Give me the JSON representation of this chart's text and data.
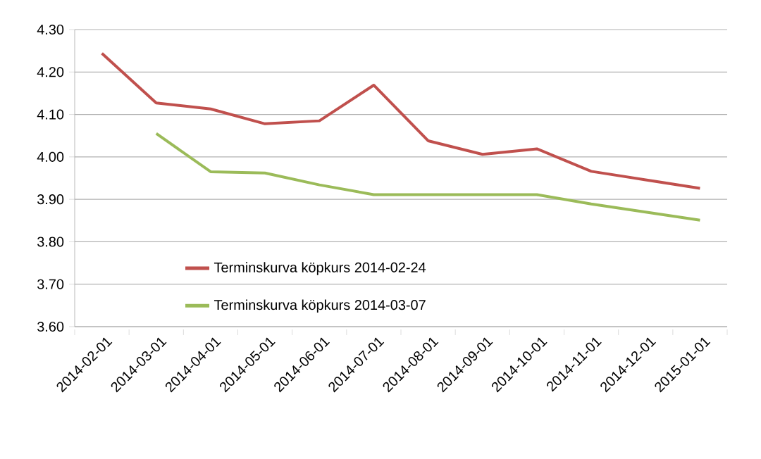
{
  "chart_data": {
    "type": "line",
    "categories": [
      "2014-02-01",
      "2014-03-01",
      "2014-04-01",
      "2014-05-01",
      "2014-06-01",
      "2014-07-01",
      "2014-08-01",
      "2014-09-01",
      "2014-10-01",
      "2014-11-01",
      "2014-12-01",
      "2015-01-01"
    ],
    "series": [
      {
        "name": "Terminskurva köpkurs 2014-02-24",
        "color": "#c0504d",
        "values": [
          4.244,
          4.127,
          4.113,
          4.078,
          4.085,
          4.169,
          4.038,
          4.006,
          4.019,
          3.966,
          3.946,
          3.926
        ]
      },
      {
        "name": "Terminskurva köpkurs 2014-03-07",
        "color": "#9bbb59",
        "values": [
          null,
          4.055,
          3.965,
          3.962,
          3.934,
          3.911,
          3.911,
          3.911,
          3.911,
          3.889,
          3.87,
          3.851
        ]
      }
    ],
    "ylim": [
      3.6,
      4.3
    ],
    "yticks": [
      {
        "value": 3.6,
        "label": "3.60"
      },
      {
        "value": 3.7,
        "label": "3.70"
      },
      {
        "value": 3.8,
        "label": "3.80"
      },
      {
        "value": 3.9,
        "label": "3.90"
      },
      {
        "value": 4.0,
        "label": "4.00"
      },
      {
        "value": 4.1,
        "label": "4.10"
      },
      {
        "value": 4.2,
        "label": "4.20"
      },
      {
        "value": 4.3,
        "label": "4.30"
      }
    ],
    "grid": "y",
    "legend": "bottom left",
    "marker": "none",
    "line_style": "solid"
  }
}
